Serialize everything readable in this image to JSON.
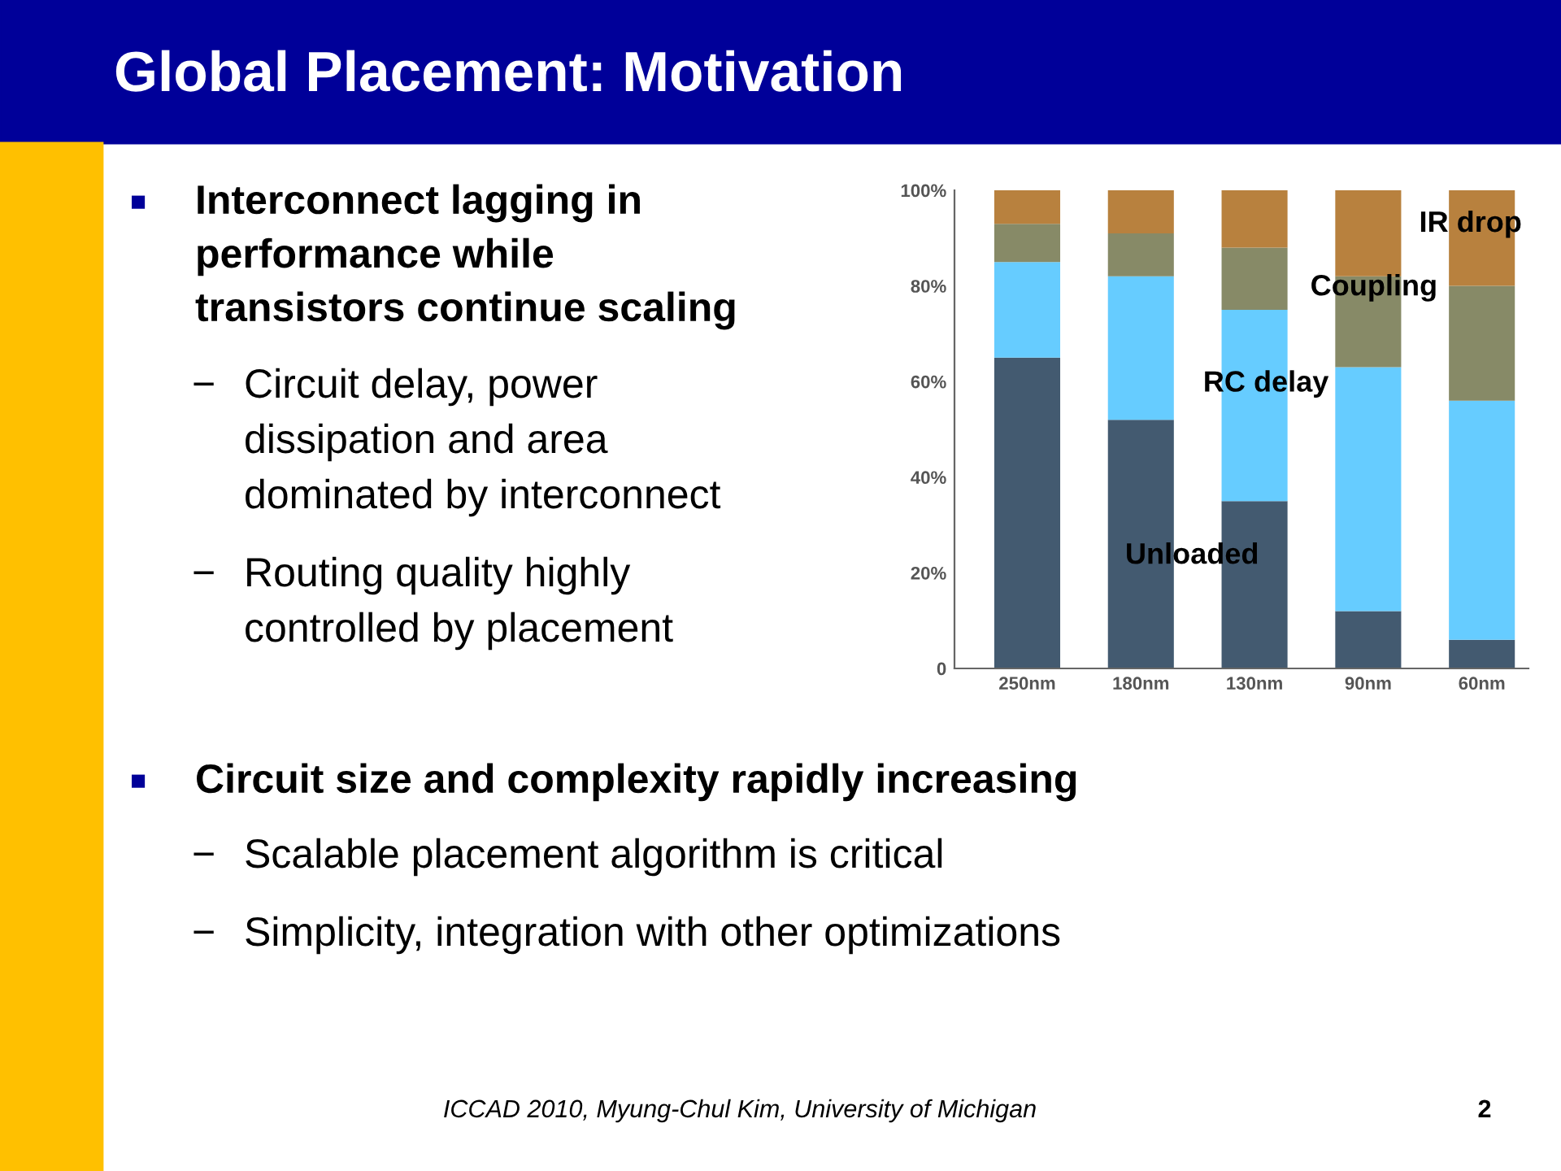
{
  "chart_data": {
    "type": "bar",
    "stacked": true,
    "title": "Global Placement: Motivation",
    "categories": [
      "250nm",
      "180nm",
      "130nm",
      "90nm",
      "60nm"
    ],
    "series": [
      {
        "name": "Unloaded",
        "color": "#435a70",
        "values": [
          65,
          52,
          35,
          12,
          6
        ]
      },
      {
        "name": "RC delay",
        "color": "#66ccff",
        "values": [
          20,
          30,
          40,
          51,
          50
        ]
      },
      {
        "name": "Coupling",
        "color": "#878a67",
        "values": [
          8,
          9,
          13,
          19,
          24
        ]
      },
      {
        "name": "IR drop",
        "color": "#b8813e",
        "values": [
          7,
          9,
          12,
          18,
          20
        ]
      }
    ],
    "ylim": [
      0,
      100
    ],
    "yticks": [
      0,
      {
        "value": 20,
        "label": "20%"
      },
      {
        "value": 40,
        "label": "40%"
      },
      {
        "value": 60,
        "label": "60%"
      },
      {
        "value": 80,
        "label": "80%"
      },
      {
        "value": 100,
        "label": "100%"
      }
    ],
    "grid": false,
    "legend": false,
    "annotations": [
      "■ Interconnect lagging in\nperformance while\ntransistors continue scaling",
      "− Circuit delay, power\ndissipation and area\ndominated by interconnect",
      "− Routing quality highly\ncontrolled by placement",
      "■ Circuit size and complexity rapidly increasing",
      "− Scalable placement algorithm is critical",
      "− Simplicity, integration with other optimizations",
      "ICCAD 2010, Myung-Chul Kim, University of Michigan",
      "2"
    ]
  }
}
